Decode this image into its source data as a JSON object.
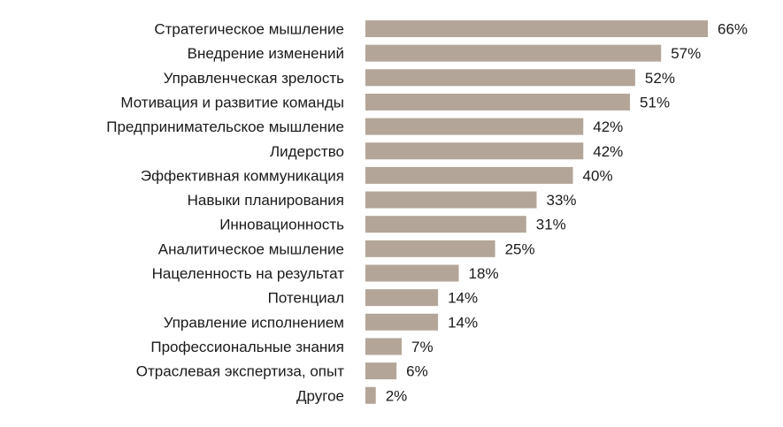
{
  "chart_data": {
    "type": "bar",
    "orientation": "horizontal",
    "categories": [
      "Стратегическое мышление",
      "Внедрение изменений",
      "Управленческая зрелость",
      "Мотивация и развитие команды",
      "Предпринимательское мышление",
      "Лидерство",
      "Эффективная коммуникация",
      "Навыки планирования",
      "Инновационность",
      "Аналитическое мышление",
      "Нацеленность на результат",
      "Потенциал",
      "Управление исполнением",
      "Профессиональные знания",
      "Отраслевая экспертиза, опыт",
      "Другое"
    ],
    "values": [
      66,
      57,
      52,
      51,
      42,
      42,
      40,
      33,
      31,
      25,
      18,
      14,
      14,
      7,
      6,
      2
    ],
    "value_labels": [
      "66%",
      "57%",
      "52%",
      "51%",
      "42%",
      "42%",
      "40%",
      "33%",
      "31%",
      "25%",
      "18%",
      "14%",
      "14%",
      "7%",
      "6%",
      "2%"
    ],
    "unit": "%",
    "xlim": [
      0,
      66
    ],
    "grid": false,
    "legend": "none",
    "bar_color": "#b3a698"
  }
}
